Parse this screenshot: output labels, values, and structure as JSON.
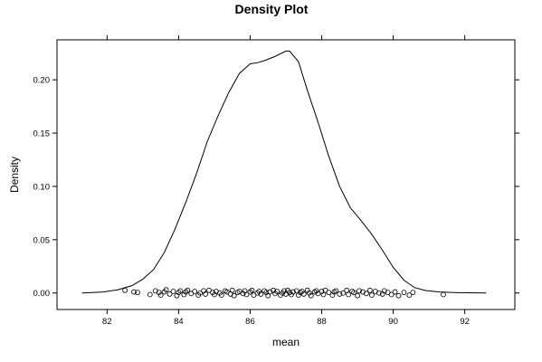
{
  "chart_data": {
    "type": "line",
    "title": "Density Plot",
    "xlabel": "mean",
    "ylabel": "Density",
    "xlim": [
      80.6,
      93.4
    ],
    "ylim": [
      -0.0155,
      0.2375
    ],
    "x_ticks": [
      82,
      84,
      86,
      88,
      90,
      92
    ],
    "x_tick_labels": [
      "82",
      "84",
      "86",
      "88",
      "90",
      "92"
    ],
    "y_ticks": [
      0.0,
      0.05,
      0.1,
      0.15,
      0.2
    ],
    "y_tick_labels": [
      "0.00",
      "0.05",
      "0.10",
      "0.15",
      "0.20"
    ],
    "grid": false,
    "series": [
      {
        "x": [
          81.3,
          81.9,
          82.3,
          82.7,
          83.0,
          83.3,
          83.6,
          83.9,
          84.2,
          84.5,
          84.8,
          85.1,
          85.4,
          85.7,
          86.0,
          86.2,
          86.4,
          86.7,
          87.0,
          87.1,
          87.35,
          87.6,
          87.9,
          88.2,
          88.5,
          88.8,
          89.1,
          89.4,
          89.7,
          90.0,
          90.3,
          90.6,
          90.9,
          91.3,
          91.8,
          92.6
        ],
        "y": [
          0.0,
          0.001,
          0.003,
          0.007,
          0.013,
          0.022,
          0.038,
          0.06,
          0.085,
          0.112,
          0.142,
          0.166,
          0.188,
          0.206,
          0.215,
          0.216,
          0.218,
          0.222,
          0.227,
          0.227,
          0.217,
          0.19,
          0.16,
          0.128,
          0.1,
          0.08,
          0.068,
          0.055,
          0.04,
          0.024,
          0.012,
          0.005,
          0.0023,
          0.001,
          0.0003,
          0.0
        ]
      }
    ],
    "rug": {
      "y": 0.0,
      "x": [
        82.5,
        82.75,
        82.85,
        83.2,
        83.35,
        83.45,
        83.5,
        83.6,
        83.65,
        83.75,
        83.85,
        83.95,
        84.0,
        84.05,
        84.15,
        84.2,
        84.25,
        84.35,
        84.45,
        84.55,
        84.6,
        84.7,
        84.75,
        84.85,
        84.95,
        85.0,
        85.05,
        85.15,
        85.2,
        85.3,
        85.35,
        85.45,
        85.5,
        85.55,
        85.65,
        85.7,
        85.8,
        85.85,
        85.9,
        86.0,
        86.05,
        86.1,
        86.2,
        86.25,
        86.3,
        86.4,
        86.45,
        86.5,
        86.55,
        86.65,
        86.7,
        86.75,
        86.85,
        86.9,
        86.95,
        87.0,
        87.05,
        87.1,
        87.15,
        87.2,
        87.3,
        87.35,
        87.4,
        87.45,
        87.5,
        87.6,
        87.65,
        87.7,
        87.8,
        87.85,
        87.9,
        88.0,
        88.05,
        88.1,
        88.2,
        88.3,
        88.35,
        88.4,
        88.5,
        88.6,
        88.7,
        88.75,
        88.85,
        88.9,
        89.0,
        89.05,
        89.15,
        89.25,
        89.35,
        89.4,
        89.5,
        89.6,
        89.7,
        89.75,
        89.85,
        89.95,
        90.05,
        90.15,
        90.3,
        90.45,
        90.55,
        91.4
      ],
      "jitter": [
        0.0025,
        0.001,
        0.0005,
        -0.0015,
        0.002,
        0.0005,
        -0.002,
        0.001,
        0.003,
        -0.001,
        0.0015,
        -0.0025,
        0.0005,
        0.002,
        -0.0015,
        0.001,
        0.0025,
        -0.0005,
        0.0015,
        -0.002,
        0.0,
        0.002,
        -0.001,
        0.0025,
        0.0005,
        -0.0015,
        0.0015,
        0.0,
        -0.002,
        0.002,
        0.001,
        -0.001,
        0.0025,
        -0.0025,
        0.0005,
        0.0015,
        -0.0005,
        0.002,
        -0.0015,
        0.001,
        0.0025,
        -0.002,
        0.0,
        0.0015,
        -0.001,
        0.002,
        0.0005,
        -0.0025,
        0.001,
        0.0025,
        -0.0005,
        0.0015,
        -0.002,
        0.0,
        0.002,
        -0.001,
        0.0025,
        0.0005,
        -0.0015,
        0.001,
        0.002,
        -0.002,
        0.0005,
        0.0015,
        -0.001,
        0.0025,
        0.0,
        -0.0025,
        0.001,
        0.002,
        -0.0005,
        0.0015,
        -0.0015,
        0.0025,
        0.0005,
        -0.002,
        0.001,
        0.002,
        -0.001,
        0.0,
        0.0025,
        -0.0015,
        0.0015,
        0.0005,
        -0.0025,
        0.002,
        0.001,
        -0.0005,
        0.0025,
        -0.002,
        0.0015,
        0.0,
        -0.001,
        0.002,
        0.0005,
        -0.0015,
        0.001,
        -0.0025,
        0.0005,
        -0.002,
        0.0005,
        -0.0015
      ]
    }
  }
}
